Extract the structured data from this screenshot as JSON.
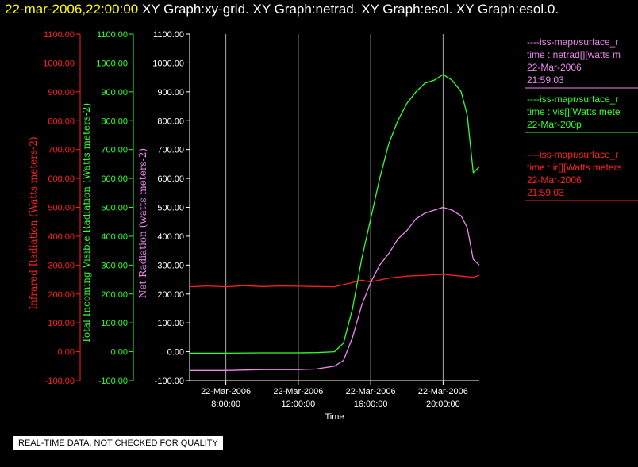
{
  "header": {
    "timestamp": "22-mar-2006,22:00:00",
    "graphs": "XY Graph:xy-grid.  XY Graph:netrad.  XY Graph:esol.  XY Graph:esol.0."
  },
  "footer_note": "REAL-TIME DATA, NOT CHECKED FOR QUALITY",
  "colors": {
    "ir": "#ff2020",
    "vis": "#33ff33",
    "netrad": "#ee88ee",
    "grid": "#aaaaaa",
    "axis": "#ffffff"
  },
  "chart_data": {
    "type": "line",
    "xlabel": "Time",
    "xlim": [
      "22-Mar-2006 06:00:00",
      "22-Mar-2006 22:00:00"
    ],
    "xticks": [
      {
        "date": "22-Mar-2006",
        "time": "8:00:00"
      },
      {
        "date": "22-Mar-2006",
        "time": "12:00:00"
      },
      {
        "date": "22-Mar-2006",
        "time": "16:00:00"
      },
      {
        "date": "22-Mar-2006",
        "time": "20:00:00"
      }
    ],
    "grid_x": true,
    "axes": [
      {
        "id": "ir",
        "label": "Infrared Radiation (Watts meters-2)",
        "ylim": [
          -100,
          1100
        ],
        "color": "#ff2020"
      },
      {
        "id": "vis",
        "label": "Total Incoming Visible Radiation (Watts meters-2)",
        "ylim": [
          -100,
          1100
        ],
        "color": "#33ff33"
      },
      {
        "id": "netrad",
        "label": "Net Radiation (watts meters-2)",
        "ylim": [
          -100,
          1100
        ],
        "color": "#ee88ee"
      }
    ],
    "yticks": [
      "-100.00",
      "0.00",
      "100.00",
      "200.00",
      "300.00",
      "400.00",
      "500.00",
      "600.00",
      "700.00",
      "800.00",
      "900.00",
      "1000.00",
      "1100.00"
    ],
    "legend": [
      {
        "id": "netrad",
        "lines": [
          "----iss-mapr/surface_r",
          "time : netrad[][watts m",
          "22-Mar-2006",
          "21:59:03"
        ]
      },
      {
        "id": "vis",
        "lines": [
          "----iss-mapr/surface_r",
          "time : vis[][Watts mete",
          "22-Mar-200p"
        ]
      },
      {
        "id": "ir",
        "lines": [
          "----iss-mapr/surface_r",
          "time : ir[][Watts meters",
          "22-Mar-2006",
          "21:59:03"
        ]
      }
    ],
    "series": [
      {
        "id": "ir",
        "x": [
          "22-Mar-2006 06:00:00",
          "22-Mar-2006 07:00:00",
          "22-Mar-2006 08:00:00",
          "22-Mar-2006 09:00:00",
          "22-Mar-2006 10:00:00",
          "22-Mar-2006 11:00:00",
          "22-Mar-2006 12:00:00",
          "22-Mar-2006 13:00:00",
          "22-Mar-2006 14:00:00",
          "22-Mar-2006 15:00:00",
          "22-Mar-2006 15:30:00",
          "22-Mar-2006 16:00:00",
          "22-Mar-2006 17:00:00",
          "22-Mar-2006 18:00:00",
          "22-Mar-2006 19:00:00",
          "22-Mar-2006 20:00:00",
          "22-Mar-2006 21:00:00",
          "22-Mar-2006 21:40:00",
          "22-Mar-2006 22:00:00"
        ],
        "y": [
          225,
          228,
          225,
          229,
          226,
          228,
          227,
          226,
          225,
          240,
          248,
          242,
          255,
          262,
          265,
          268,
          262,
          258,
          265
        ]
      },
      {
        "id": "vis",
        "x": [
          "22-Mar-2006 06:00:00",
          "22-Mar-2006 08:00:00",
          "22-Mar-2006 10:00:00",
          "22-Mar-2006 12:00:00",
          "22-Mar-2006 13:00:00",
          "22-Mar-2006 14:00:00",
          "22-Mar-2006 14:30:00",
          "22-Mar-2006 15:00:00",
          "22-Mar-2006 15:30:00",
          "22-Mar-2006 16:00:00",
          "22-Mar-2006 16:30:00",
          "22-Mar-2006 17:00:00",
          "22-Mar-2006 17:30:00",
          "22-Mar-2006 18:00:00",
          "22-Mar-2006 18:30:00",
          "22-Mar-2006 19:00:00",
          "22-Mar-2006 19:30:00",
          "22-Mar-2006 20:00:00",
          "22-Mar-2006 20:30:00",
          "22-Mar-2006 21:00:00",
          "22-Mar-2006 21:20:00",
          "22-Mar-2006 21:40:00",
          "22-Mar-2006 22:00:00"
        ],
        "y": [
          -5,
          -5,
          -4,
          -4,
          -3,
          0,
          30,
          150,
          320,
          460,
          600,
          720,
          800,
          860,
          900,
          930,
          940,
          960,
          940,
          900,
          820,
          620,
          640
        ]
      },
      {
        "id": "netrad",
        "x": [
          "22-Mar-2006 06:00:00",
          "22-Mar-2006 08:00:00",
          "22-Mar-2006 10:00:00",
          "22-Mar-2006 12:00:00",
          "22-Mar-2006 13:00:00",
          "22-Mar-2006 14:00:00",
          "22-Mar-2006 14:30:00",
          "22-Mar-2006 15:00:00",
          "22-Mar-2006 15:30:00",
          "22-Mar-2006 16:00:00",
          "22-Mar-2006 16:30:00",
          "22-Mar-2006 17:00:00",
          "22-Mar-2006 17:30:00",
          "22-Mar-2006 18:00:00",
          "22-Mar-2006 18:30:00",
          "22-Mar-2006 19:00:00",
          "22-Mar-2006 19:30:00",
          "22-Mar-2006 20:00:00",
          "22-Mar-2006 20:30:00",
          "22-Mar-2006 21:00:00",
          "22-Mar-2006 21:20:00",
          "22-Mar-2006 21:40:00",
          "22-Mar-2006 22:00:00"
        ],
        "y": [
          -65,
          -65,
          -62,
          -62,
          -60,
          -50,
          -30,
          50,
          160,
          240,
          300,
          340,
          390,
          420,
          460,
          480,
          490,
          500,
          490,
          470,
          430,
          320,
          300
        ]
      }
    ]
  }
}
